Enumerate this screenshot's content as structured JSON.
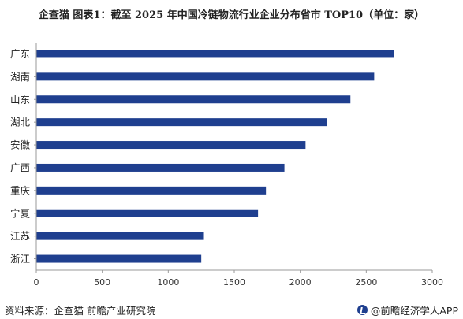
{
  "title": "企查猫 图表1：截至 2025 年中国冷链物流行业企业分布省市 TOP10（单位：家）",
  "source": "资料来源：企查猫 前瞻产业研究院",
  "brand": "@前瞻经济学人APP",
  "colors": {
    "bar": "#1f3f8f",
    "axis": "#9a9a9a"
  },
  "chart_data": {
    "type": "bar",
    "orientation": "horizontal",
    "categories": [
      "广东",
      "湖南",
      "山东",
      "湖北",
      "安徽",
      "广西",
      "重庆",
      "宁夏",
      "江苏",
      "浙江"
    ],
    "values": [
      2710,
      2560,
      2380,
      2200,
      2040,
      1880,
      1740,
      1680,
      1270,
      1250
    ],
    "xticks": [
      0,
      500,
      1000,
      1500,
      2000,
      2500,
      3000
    ],
    "xlim": [
      0,
      3000
    ],
    "grid": false,
    "legend": "none"
  }
}
